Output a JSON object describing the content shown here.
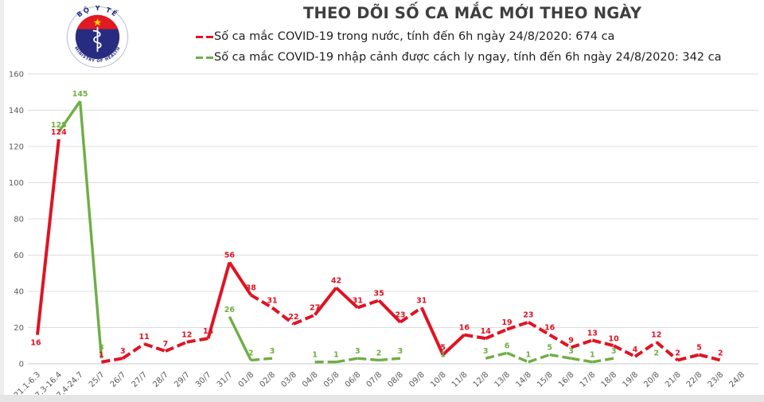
{
  "header": {
    "title": "THEO DÕI SỐ CA MẮC MỚI THEO NGÀY",
    "logo": {
      "top_text": "BỘ Y TẾ",
      "bottom_text": "MINISTRY OF HEALTH"
    }
  },
  "legend": {
    "items": [
      {
        "label": "Số ca mắc COVID-19 trong nước, tính đến 6h ngày 24/8/2020: 674 ca",
        "color": "#e01323"
      },
      {
        "label": "Số ca mắc COVID-19 nhập cảnh được cách ly ngay, tính đến 6h ngày 24/8/2020: 342 ca",
        "color": "#6fae44"
      }
    ]
  },
  "chart_data": {
    "type": "line",
    "title": "THEO DÕI SỐ CA MẮC MỚI THEO NGÀY",
    "categories": [
      "21.1-6.3",
      "7.3-16.4",
      "17.4-24.7",
      "25/7",
      "26/7",
      "27/7",
      "28/7",
      "29/7",
      "30/7",
      "31/7",
      "01/8",
      "02/8",
      "03/8",
      "04/8",
      "05/8",
      "06/8",
      "07/8",
      "08/8",
      "09/8",
      "10/8",
      "11/8",
      "12/8",
      "13/8",
      "14/8",
      "15/8",
      "16/8",
      "17/8",
      "18/8",
      "19/8",
      "20/8",
      "21/8",
      "22/8",
      "23/8",
      "24/8"
    ],
    "series": [
      {
        "name": "Số ca mắc COVID-19 trong nước",
        "color": "#e01323",
        "style": "dashed",
        "values": [
          16,
          124,
          null,
          1,
          3,
          11,
          7,
          12,
          14,
          56,
          38,
          31,
          22,
          27,
          42,
          31,
          35,
          23,
          31,
          5,
          16,
          14,
          19,
          23,
          16,
          9,
          13,
          10,
          4,
          12,
          2,
          5,
          2,
          null
        ]
      },
      {
        "name": "Số ca mắc COVID-19 nhập cảnh được cách ly ngay",
        "color": "#6fae44",
        "style": "dashed",
        "values": [
          null,
          128,
          145,
          3,
          null,
          null,
          null,
          null,
          null,
          26,
          2,
          3,
          null,
          1,
          1,
          3,
          2,
          3,
          null,
          1,
          null,
          3,
          6,
          1,
          5,
          3,
          1,
          3,
          null,
          2,
          null,
          null,
          null,
          null
        ]
      }
    ],
    "xlabel": "",
    "ylabel": "",
    "ylim": [
      0,
      160
    ],
    "yticks": [
      0,
      20,
      40,
      60,
      80,
      100,
      120,
      140,
      160
    ],
    "grid": true,
    "legend_position": "top"
  },
  "colors": {
    "title": "#3f3f3f",
    "axis_text": "#595959",
    "gridline": "#dcdcdc",
    "baseline": "#c8c8c8",
    "background": "#ffffff"
  }
}
